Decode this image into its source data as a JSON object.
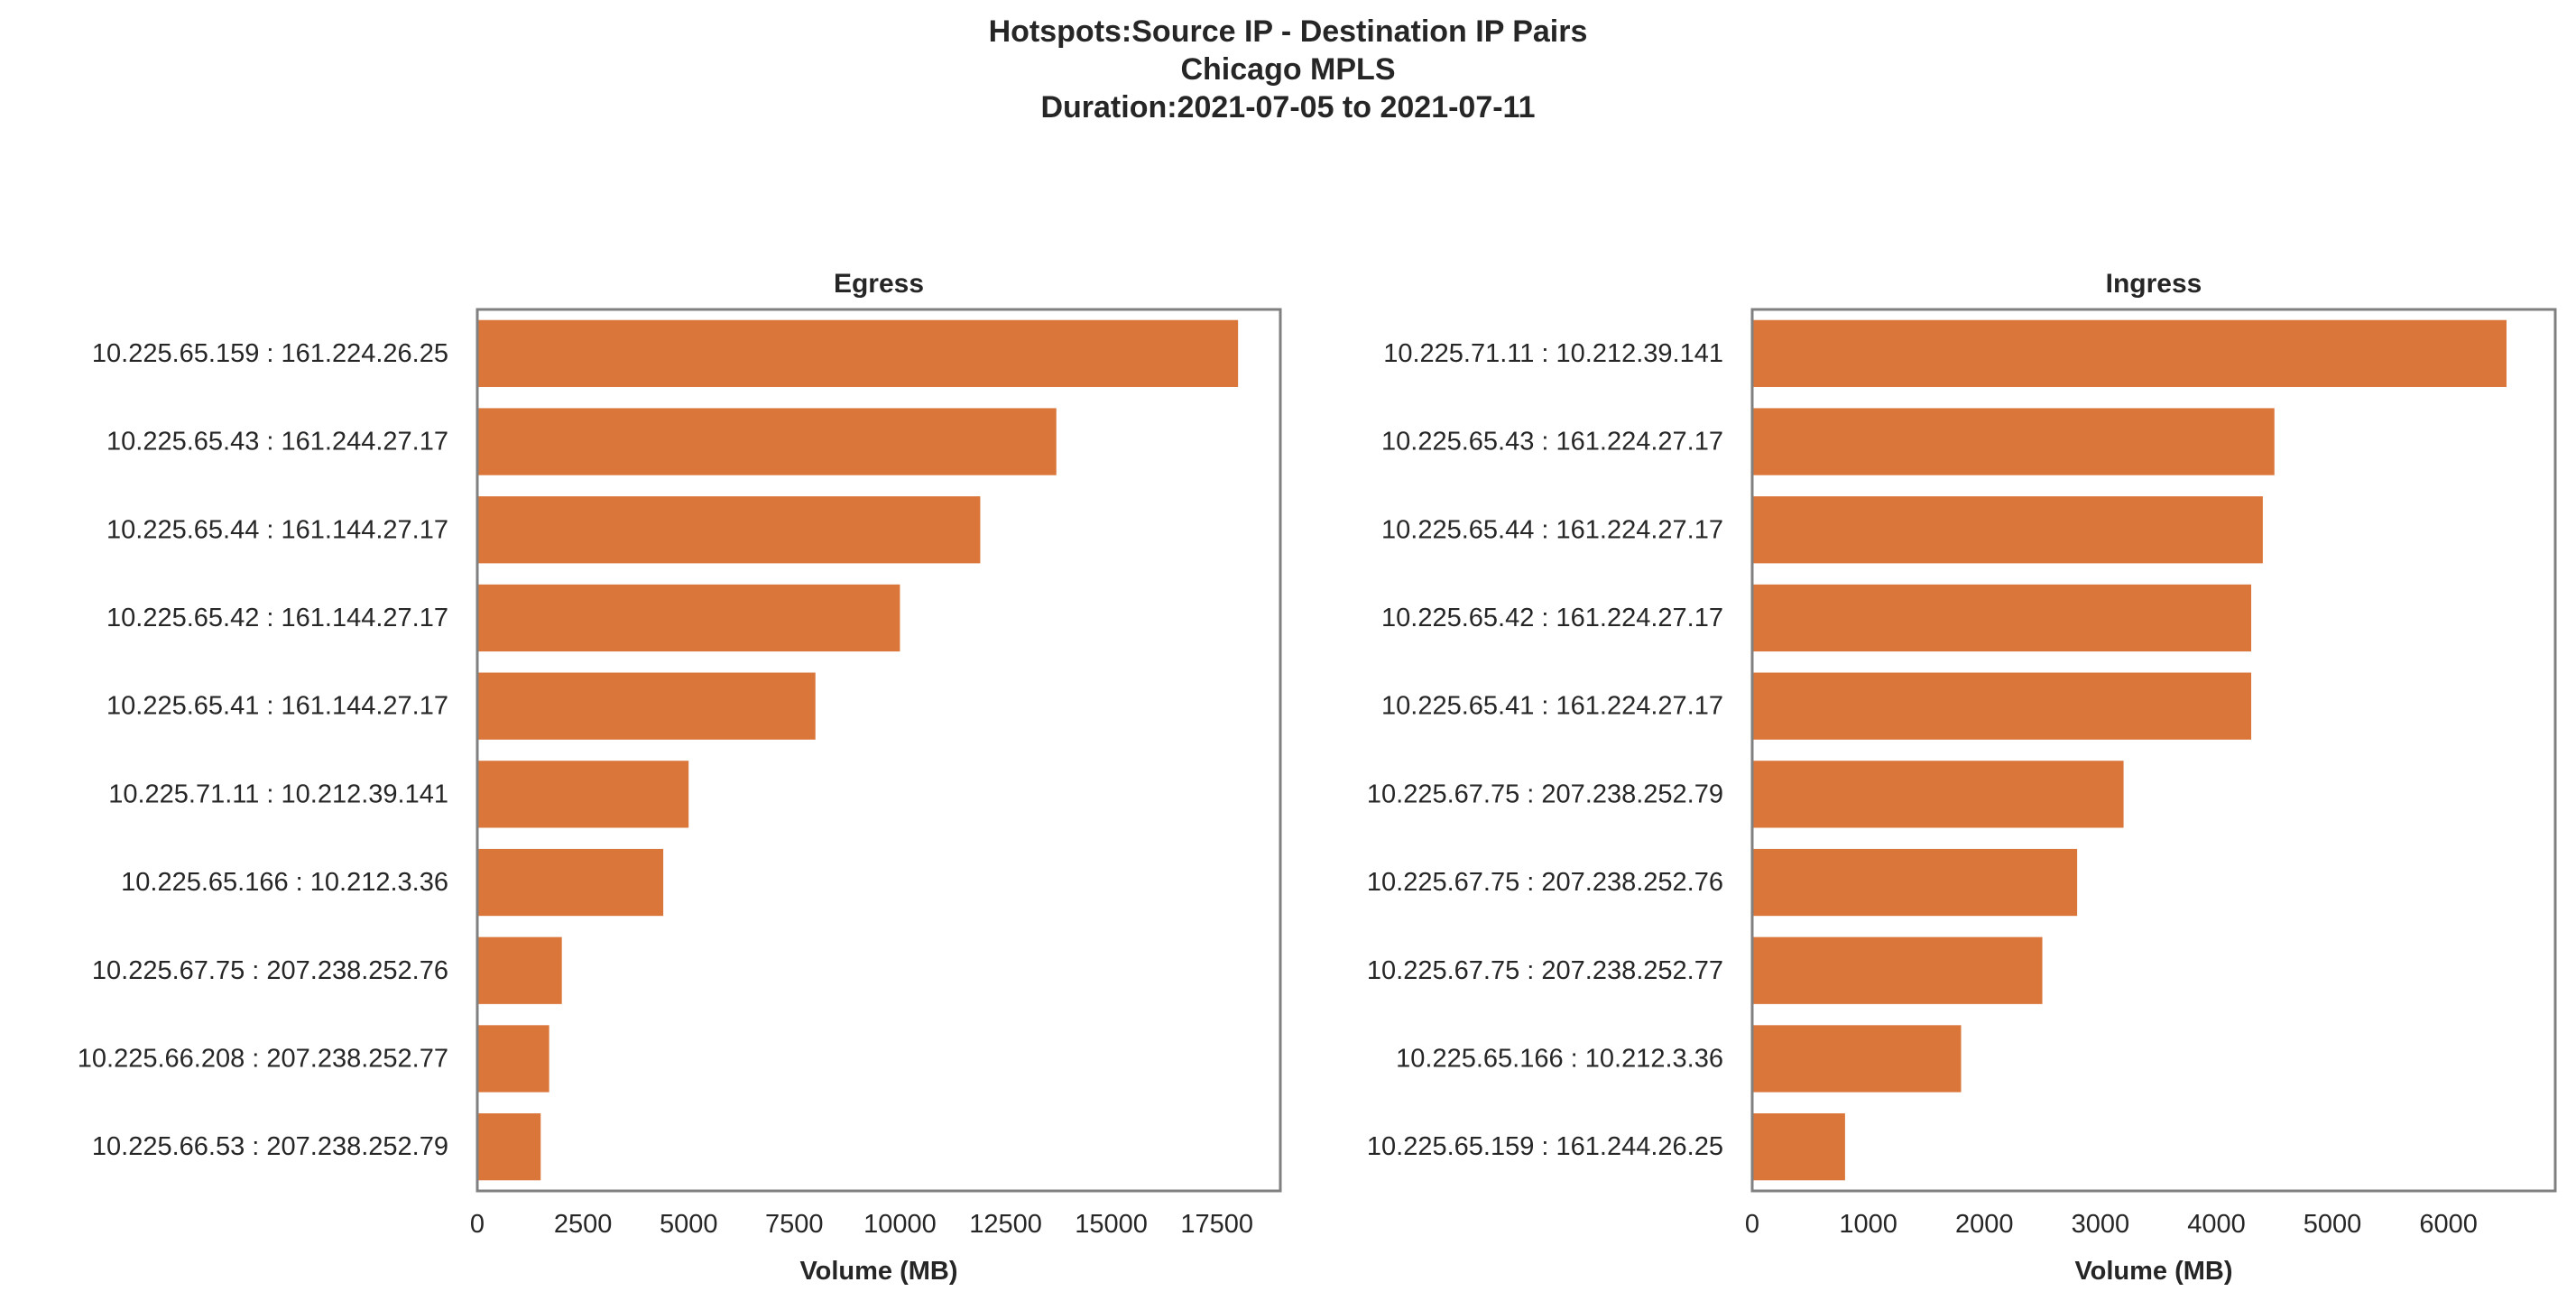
{
  "title": {
    "line1": "Hotspots:Source IP - Destination IP Pairs",
    "line2": "Chicago MPLS",
    "line3": "Duration:2021-07-05 to 2021-07-11"
  },
  "colors": {
    "bar": "#db763a",
    "frame": "#808080",
    "text": "#262626"
  },
  "chart_data": [
    {
      "type": "bar",
      "orientation": "horizontal",
      "title": "Egress",
      "xlabel": "Volume (MB)",
      "ylabel": "",
      "xlim": [
        0,
        19000
      ],
      "xticks": [
        0,
        2500,
        5000,
        7500,
        10000,
        12500,
        15000,
        17500
      ],
      "grid": false,
      "categories": [
        "10.225.65.159 : 161.224.26.25",
        "10.225.65.43 : 161.244.27.17",
        "10.225.65.44 : 161.144.27.17",
        "10.225.65.42 : 161.144.27.17",
        "10.225.65.41 : 161.144.27.17",
        "10.225.71.11 : 10.212.39.141",
        "10.225.65.166 : 10.212.3.36",
        "10.225.67.75 : 207.238.252.76",
        "10.225.66.208 : 207.238.252.77",
        "10.225.66.53 : 207.238.252.79"
      ],
      "values": [
        18000,
        13700,
        11900,
        10000,
        8000,
        5000,
        4400,
        2000,
        1700,
        1500
      ]
    },
    {
      "type": "bar",
      "orientation": "horizontal",
      "title": "Ingress",
      "xlabel": "Volume (MB)",
      "ylabel": "",
      "xlim": [
        0,
        6920
      ],
      "xticks": [
        0,
        1000,
        2000,
        3000,
        4000,
        5000,
        6000
      ],
      "grid": false,
      "categories": [
        "10.225.71.11 : 10.212.39.141",
        "10.225.65.43 : 161.224.27.17",
        "10.225.65.44 : 161.224.27.17",
        "10.225.65.42 : 161.224.27.17",
        "10.225.65.41 : 161.224.27.17",
        "10.225.67.75 : 207.238.252.79",
        "10.225.67.75 : 207.238.252.76",
        "10.225.67.75 : 207.238.252.77",
        "10.225.65.166 : 10.212.3.36",
        "10.225.65.159 : 161.244.26.25"
      ],
      "values": [
        6500,
        4500,
        4400,
        4300,
        4300,
        3200,
        2800,
        2500,
        1800,
        800
      ]
    }
  ]
}
